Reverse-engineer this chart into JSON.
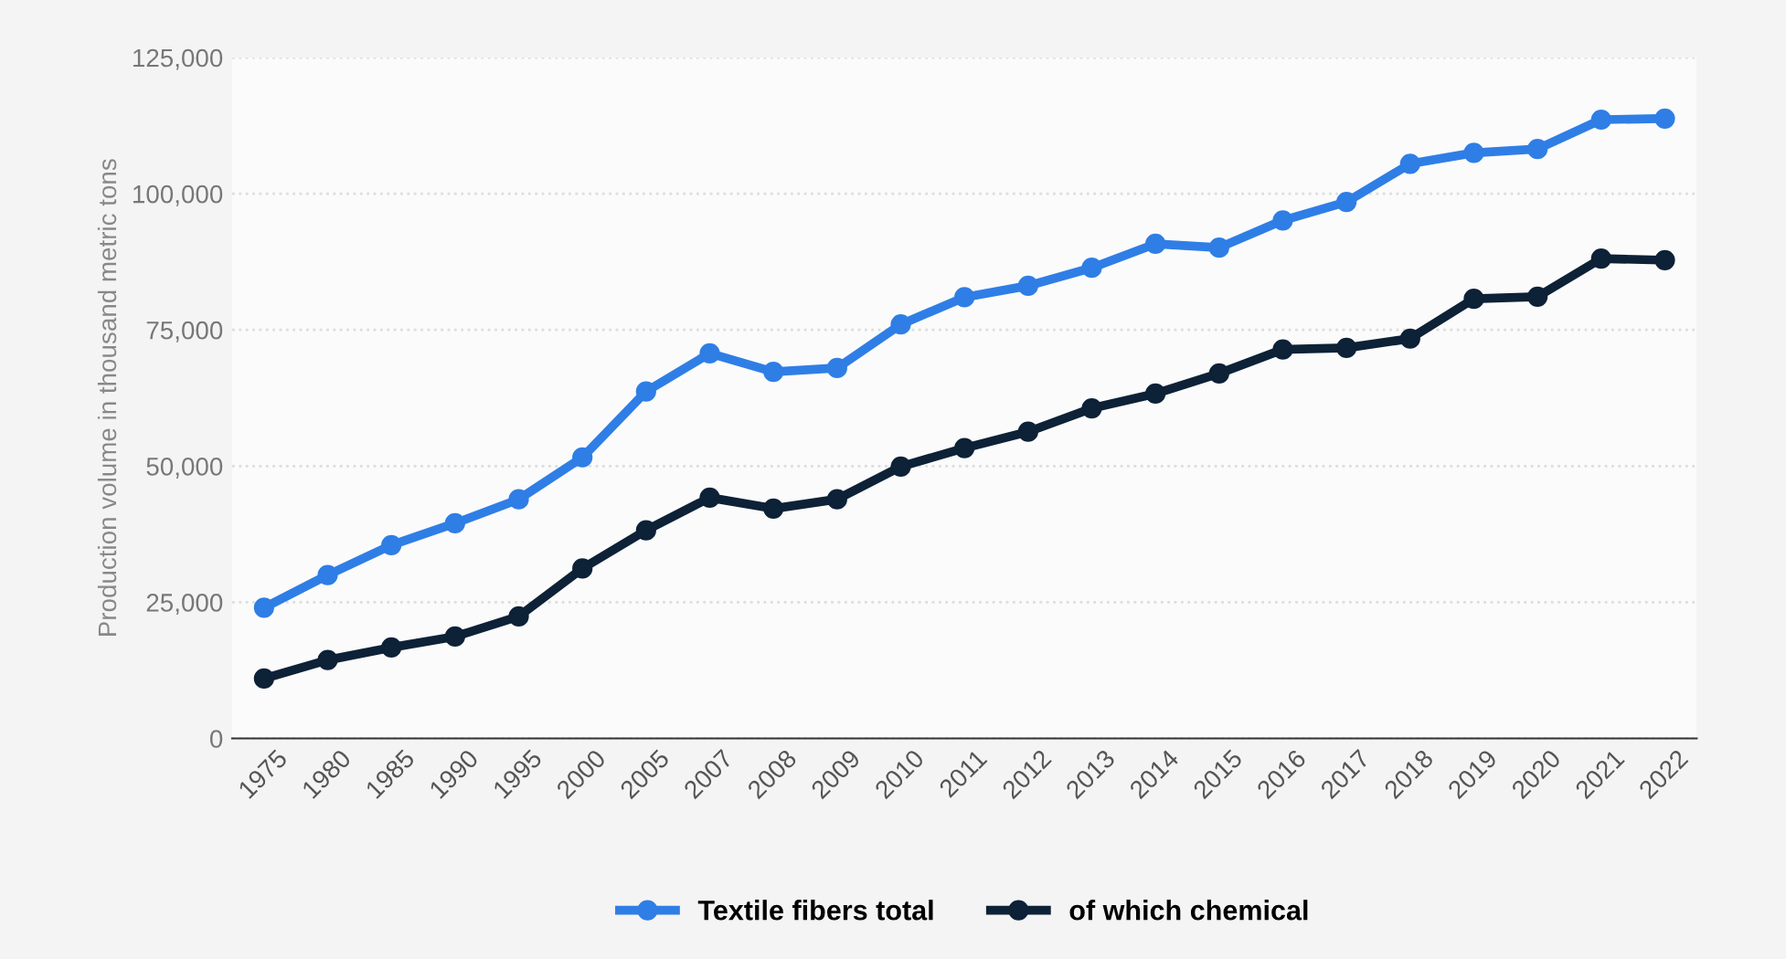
{
  "chart_data": {
    "type": "line",
    "ylabel": "Production volume in thousand metric tons",
    "categories": [
      "1975",
      "1980",
      "1985",
      "1990",
      "1995",
      "2000",
      "2005",
      "2007",
      "2008",
      "2009",
      "2010",
      "2011",
      "2012",
      "2013",
      "2014",
      "2015",
      "2016",
      "2017",
      "2018",
      "2019",
      "2020",
      "2021",
      "2022"
    ],
    "series": [
      {
        "name": "Textile fibers total",
        "color": "#2f7ee6",
        "values": [
          24000,
          30000,
          35500,
          39500,
          43900,
          51600,
          63700,
          70700,
          67300,
          68000,
          76000,
          81000,
          83100,
          86400,
          90800,
          90100,
          95100,
          98500,
          105500,
          107500,
          108200,
          113600,
          113800
        ]
      },
      {
        "name": "of which chemical",
        "color": "#0d2137",
        "values": [
          11000,
          14400,
          16700,
          18700,
          22400,
          31200,
          38200,
          44200,
          42200,
          43900,
          49900,
          53300,
          56300,
          60600,
          63300,
          67000,
          71400,
          71700,
          73400,
          80700,
          81100,
          88100,
          87800
        ]
      }
    ],
    "ylim": [
      0,
      125000
    ],
    "yticks": [
      {
        "value": 0,
        "label": "0"
      },
      {
        "value": 25000,
        "label": "25,000"
      },
      {
        "value": 50000,
        "label": "50,000"
      },
      {
        "value": 75000,
        "label": "75,000"
      },
      {
        "value": 100000,
        "label": "100,000"
      },
      {
        "value": 125000,
        "label": "125,000"
      }
    ],
    "grid": "y",
    "legend": "bottom",
    "marker": "circle",
    "line_style": "solid"
  }
}
